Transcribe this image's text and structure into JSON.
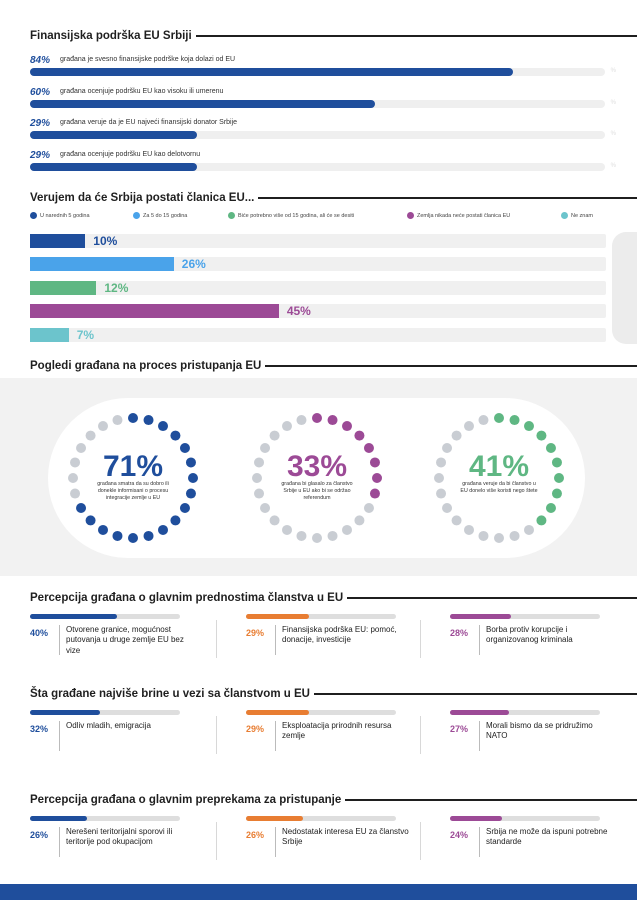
{
  "section1": {
    "title": "Finansijska podrška EU Srbiji",
    "pct_mark": "%",
    "rows": [
      {
        "pct": "84%",
        "value": 84,
        "label": "građana je svesno finansijske podrške koja dolazi od EU"
      },
      {
        "pct": "60%",
        "value": 60,
        "label": "građana ocenjuje podršku EU kao visoku ili umerenu"
      },
      {
        "pct": "29%",
        "value": 29,
        "label": "građana veruje da je EU najveći finansijski donator Srbije"
      },
      {
        "pct": "29%",
        "value": 29,
        "label": "građana ocenjuje podršku EU kao delotvornu"
      }
    ]
  },
  "section2": {
    "title": "Verujem da će Srbija postati članica EU...",
    "legend": [
      {
        "label": "U narednih 5 godina",
        "color": "#1f4e9c"
      },
      {
        "label": "Za 5 do 15 godina",
        "color": "#4aa3ea"
      },
      {
        "label": "Biće potrebno više od 15 godina, ali će se desiti",
        "color": "#5fb783"
      },
      {
        "label": "Zemlja nikada neće postati članica EU",
        "color": "#9c4a96"
      },
      {
        "label": "Ne znam",
        "color": "#6cc4cc"
      }
    ],
    "bars": [
      {
        "pct": "10%",
        "value": 10,
        "color": "#1f4e9c"
      },
      {
        "pct": "26%",
        "value": 26,
        "color": "#4aa3ea"
      },
      {
        "pct": "12%",
        "value": 12,
        "color": "#5fb783"
      },
      {
        "pct": "45%",
        "value": 45,
        "color": "#9c4a96"
      },
      {
        "pct": "7%",
        "value": 7,
        "color": "#6cc4cc"
      }
    ]
  },
  "section3": {
    "title": "Pogledi građana na proces pristupanja EU",
    "rings": [
      {
        "pct": "71%",
        "value": 71,
        "color": "#1f4e9c",
        "text": "građana smatra da su dobro ili donekle informisani o procesu integracije zemlje u EU"
      },
      {
        "pct": "33%",
        "value": 33,
        "color": "#9c4a96",
        "text": "građana bi glasalo za članstvo Srbije u EU ako bi se održao referendum"
      },
      {
        "pct": "41%",
        "value": 41,
        "color": "#5fb783",
        "text": "građana veruje da bi članstvo u EU donelo više koristi nego štete"
      }
    ]
  },
  "section4": {
    "title": "Percepcija građana o glavnim prednostima članstva u EU",
    "items": [
      {
        "pct": "40%",
        "value": 40,
        "color": "#1f4e9c",
        "text": "Otvorene granice, mogućnost putovanja u druge zemlje EU bez vize"
      },
      {
        "pct": "29%",
        "value": 29,
        "color": "#e87d32",
        "text": "Finansijska podrška EU: pomoć, donacije, investicije"
      },
      {
        "pct": "28%",
        "value": 28,
        "color": "#9c4a96",
        "text": "Borba protiv korupcije i organizovanog kriminala"
      }
    ]
  },
  "section5": {
    "title": "Šta građane najviše brine u vezi sa članstvom u EU",
    "items": [
      {
        "pct": "32%",
        "value": 32,
        "color": "#1f4e9c",
        "text": "Odliv mladih, emigracija"
      },
      {
        "pct": "29%",
        "value": 29,
        "color": "#e87d32",
        "text": "Eksploatacija prirodnih resursa zemlje"
      },
      {
        "pct": "27%",
        "value": 27,
        "color": "#9c4a96",
        "text": "Morali bismo da se pridružimo NATO"
      }
    ]
  },
  "section6": {
    "title": "Percepcija građana o glavnim preprekama za pristupanje",
    "items": [
      {
        "pct": "26%",
        "value": 26,
        "color": "#1f4e9c",
        "text": "Nerešeni teritorijalni sporovi ili teritorije pod okupacijom"
      },
      {
        "pct": "26%",
        "value": 26,
        "color": "#e87d32",
        "text": "Nedostatak interesa EU za članstvo Srbije"
      },
      {
        "pct": "24%",
        "value": 24,
        "color": "#9c4a96",
        "text": "Srbija ne može da ispuni potrebne standarde"
      }
    ]
  }
}
